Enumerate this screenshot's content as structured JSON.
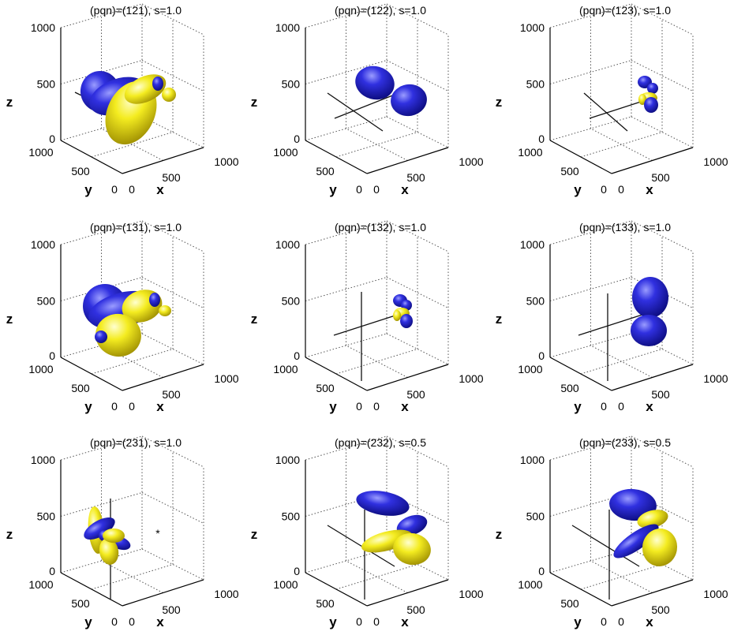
{
  "chart_data": [
    {
      "type": "3d-isosurface",
      "title": "(pqn)=(121), s=1.0",
      "xlabel": "x",
      "ylabel": "y",
      "zlabel": "z",
      "xlim": [
        0,
        1000
      ],
      "ylim": [
        0,
        1000
      ],
      "zlim": [
        0,
        1000
      ],
      "x_ticks": [
        "0",
        "500",
        "1000"
      ],
      "y_ticks": [
        "0",
        "500",
        "1000"
      ],
      "z_ticks": [
        "0",
        "500",
        "1000"
      ],
      "grid": true,
      "lobe_colors": [
        "#1a1ac8",
        "#f2ea1a"
      ]
    },
    {
      "type": "3d-isosurface",
      "title": "(pqn)=(122), s=1.0",
      "xlabel": "x",
      "ylabel": "y",
      "zlabel": "z",
      "xlim": [
        0,
        1000
      ],
      "ylim": [
        0,
        1000
      ],
      "zlim": [
        0,
        1000
      ],
      "x_ticks": [
        "0",
        "500",
        "1000"
      ],
      "y_ticks": [
        "0",
        "500",
        "1000"
      ],
      "z_ticks": [
        "0",
        "500",
        "1000"
      ],
      "grid": true,
      "lobe_colors": [
        "#1a1ac8"
      ]
    },
    {
      "type": "3d-isosurface",
      "title": "(pqn)=(123), s=1.0",
      "xlabel": "x",
      "ylabel": "y",
      "zlabel": "z",
      "xlim": [
        0,
        1000
      ],
      "ylim": [
        0,
        1000
      ],
      "zlim": [
        0,
        1000
      ],
      "x_ticks": [
        "0",
        "500",
        "1000"
      ],
      "y_ticks": [
        "0",
        "500",
        "1000"
      ],
      "z_ticks": [
        "0",
        "500",
        "1000"
      ],
      "grid": true,
      "lobe_colors": [
        "#1a1ac8",
        "#f2ea1a"
      ]
    },
    {
      "type": "3d-isosurface",
      "title": "(pqn)=(131), s=1.0",
      "xlabel": "x",
      "ylabel": "y",
      "zlabel": "z",
      "xlim": [
        0,
        1000
      ],
      "ylim": [
        0,
        1000
      ],
      "zlim": [
        0,
        1000
      ],
      "x_ticks": [
        "0",
        "500",
        "1000"
      ],
      "y_ticks": [
        "0",
        "500",
        "1000"
      ],
      "z_ticks": [
        "0",
        "500",
        "1000"
      ],
      "grid": true,
      "lobe_colors": [
        "#1a1ac8",
        "#f2ea1a"
      ]
    },
    {
      "type": "3d-isosurface",
      "title": "(pqn)=(132), s=1.0",
      "xlabel": "x",
      "ylabel": "y",
      "zlabel": "z",
      "xlim": [
        0,
        1000
      ],
      "ylim": [
        0,
        1000
      ],
      "zlim": [
        0,
        1000
      ],
      "x_ticks": [
        "0",
        "500",
        "1000"
      ],
      "y_ticks": [
        "0",
        "500",
        "1000"
      ],
      "z_ticks": [
        "0",
        "500",
        "1000"
      ],
      "grid": true,
      "lobe_colors": [
        "#1a1ac8",
        "#f2ea1a"
      ]
    },
    {
      "type": "3d-isosurface",
      "title": "(pqn)=(133), s=1.0",
      "xlabel": "x",
      "ylabel": "y",
      "zlabel": "z",
      "xlim": [
        0,
        1000
      ],
      "ylim": [
        0,
        1000
      ],
      "zlim": [
        0,
        1000
      ],
      "x_ticks": [
        "0",
        "500",
        "1000"
      ],
      "y_ticks": [
        "0",
        "500",
        "1000"
      ],
      "z_ticks": [
        "0",
        "500",
        "1000"
      ],
      "grid": true,
      "lobe_colors": [
        "#1a1ac8"
      ]
    },
    {
      "type": "3d-isosurface",
      "title": "(pqn)=(231), s=1.0",
      "xlabel": "x",
      "ylabel": "y",
      "zlabel": "z",
      "xlim": [
        0,
        1000
      ],
      "ylim": [
        0,
        1000
      ],
      "zlim": [
        0,
        1000
      ],
      "x_ticks": [
        "0",
        "500",
        "1000"
      ],
      "y_ticks": [
        "0",
        "500",
        "1000"
      ],
      "z_ticks": [
        "0",
        "500",
        "1000"
      ],
      "grid": true,
      "lobe_colors": [
        "#1a1ac8",
        "#f2ea1a"
      ],
      "annotation": "*"
    },
    {
      "type": "3d-isosurface",
      "title": "(pqn)=(232), s=0.5",
      "xlabel": "x",
      "ylabel": "y",
      "zlabel": "z",
      "xlim": [
        0,
        1000
      ],
      "ylim": [
        0,
        1000
      ],
      "zlim": [
        0,
        1000
      ],
      "x_ticks": [
        "0",
        "500",
        "1000"
      ],
      "y_ticks": [
        "0",
        "500",
        "1000"
      ],
      "z_ticks": [
        "0",
        "500",
        "1000"
      ],
      "grid": true,
      "lobe_colors": [
        "#1a1ac8",
        "#f2ea1a"
      ]
    },
    {
      "type": "3d-isosurface",
      "title": "(pqn)=(233), s=0.5",
      "xlabel": "x",
      "ylabel": "y",
      "zlabel": "z",
      "xlim": [
        0,
        1000
      ],
      "ylim": [
        0,
        1000
      ],
      "zlim": [
        0,
        1000
      ],
      "x_ticks": [
        "0",
        "500",
        "1000"
      ],
      "y_ticks": [
        "0",
        "500",
        "1000"
      ],
      "z_ticks": [
        "0",
        "500",
        "1000"
      ],
      "grid": true,
      "lobe_colors": [
        "#1a1ac8",
        "#f2ea1a"
      ]
    }
  ]
}
